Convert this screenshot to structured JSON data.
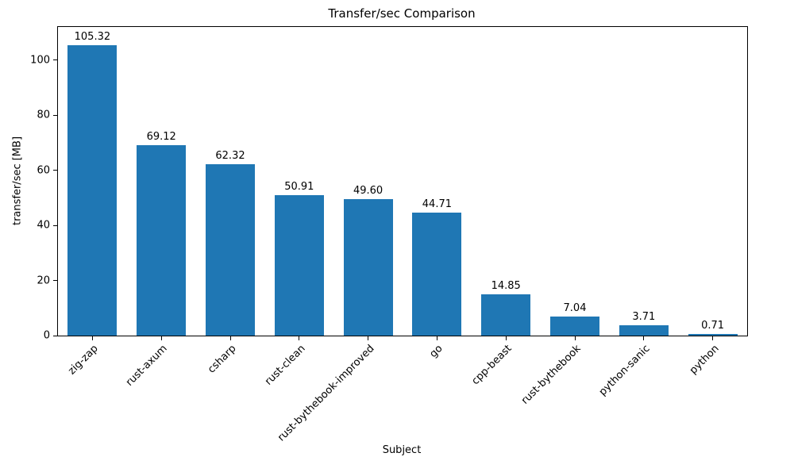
{
  "chart_data": {
    "type": "bar",
    "title": "Transfer/sec Comparison",
    "xlabel": "Subject",
    "ylabel": "transfer/sec [MB]",
    "categories": [
      "zig-zap",
      "rust-axum",
      "csharp",
      "rust-clean",
      "rust-bythebook-improved",
      "go",
      "cpp-beast",
      "rust-bythebook",
      "python-sanic",
      "python"
    ],
    "values": [
      105.32,
      69.12,
      62.32,
      50.91,
      49.6,
      44.71,
      14.85,
      7.04,
      3.71,
      0.71
    ],
    "value_labels": [
      "105.32",
      "69.12",
      "62.32",
      "50.91",
      "49.60",
      "44.71",
      "14.85",
      "7.04",
      "3.71",
      "0.71"
    ],
    "bar_color": "#1f77b4",
    "ylim": [
      0,
      112
    ],
    "yticks": [
      0,
      20,
      40,
      60,
      80,
      100
    ],
    "grid": false,
    "legend_position": "none",
    "x_tick_rotation_deg": 45
  }
}
